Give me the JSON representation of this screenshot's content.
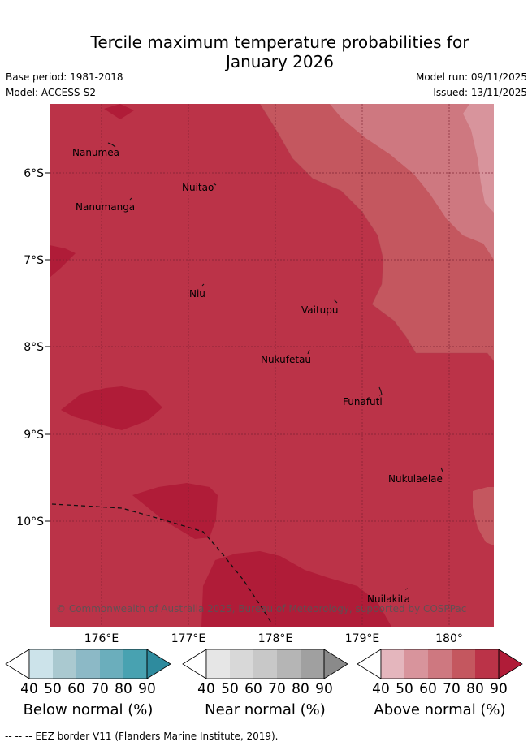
{
  "title": {
    "line1": "Tercile maximum temperature probabilities for",
    "line2": "January 2026"
  },
  "header": {
    "base_period": "Base period: 1981-2018",
    "model": "Model: ACCESS-S2",
    "model_run": "Model run: 09/11/2025",
    "issued": "Issued: 13/11/2025"
  },
  "map": {
    "places": [
      "Nanumea",
      "Nuitao",
      "Nanumanga",
      "Niu",
      "Vaitupu",
      "Nukufetau",
      "Funafuti",
      "Nukulaelae",
      "Nuilakita"
    ],
    "lat_labels": [
      "6°S",
      "7°S",
      "8°S",
      "9°S",
      "10°S"
    ],
    "lon_labels": [
      "176°E",
      "177°E",
      "178°E",
      "179°E",
      "180°"
    ],
    "copyright": "© Commonwealth of Australia 2025, Bureau of Meteorology, supported by COSPPac"
  },
  "colorbars": [
    {
      "label": "Below normal (%)",
      "ticks": [
        "40",
        "50",
        "60",
        "70",
        "80",
        "90"
      ],
      "colors": [
        "#ffffff",
        "#cce3ea",
        "#aac9d0",
        "#8cb9c6",
        "#6baebc",
        "#48a2b1",
        "#2e8b9e"
      ]
    },
    {
      "label": "Near normal (%)",
      "ticks": [
        "40",
        "50",
        "60",
        "70",
        "80",
        "90"
      ],
      "colors": [
        "#ffffff",
        "#e6e6e6",
        "#d8d8d8",
        "#c8c8c8",
        "#b5b5b5",
        "#a0a0a0",
        "#8a8a8a"
      ]
    },
    {
      "label": "Above normal (%)",
      "ticks": [
        "40",
        "50",
        "60",
        "70",
        "80",
        "90"
      ],
      "colors": [
        "#ffffff",
        "#e4b6bd",
        "#d8949c",
        "#ce7880",
        "#c4575f",
        "#bb3348",
        "#b01c38"
      ]
    }
  ],
  "footer": "--  --  -- EEZ border V11 (Flanders Marine Institute, 2019)."
}
